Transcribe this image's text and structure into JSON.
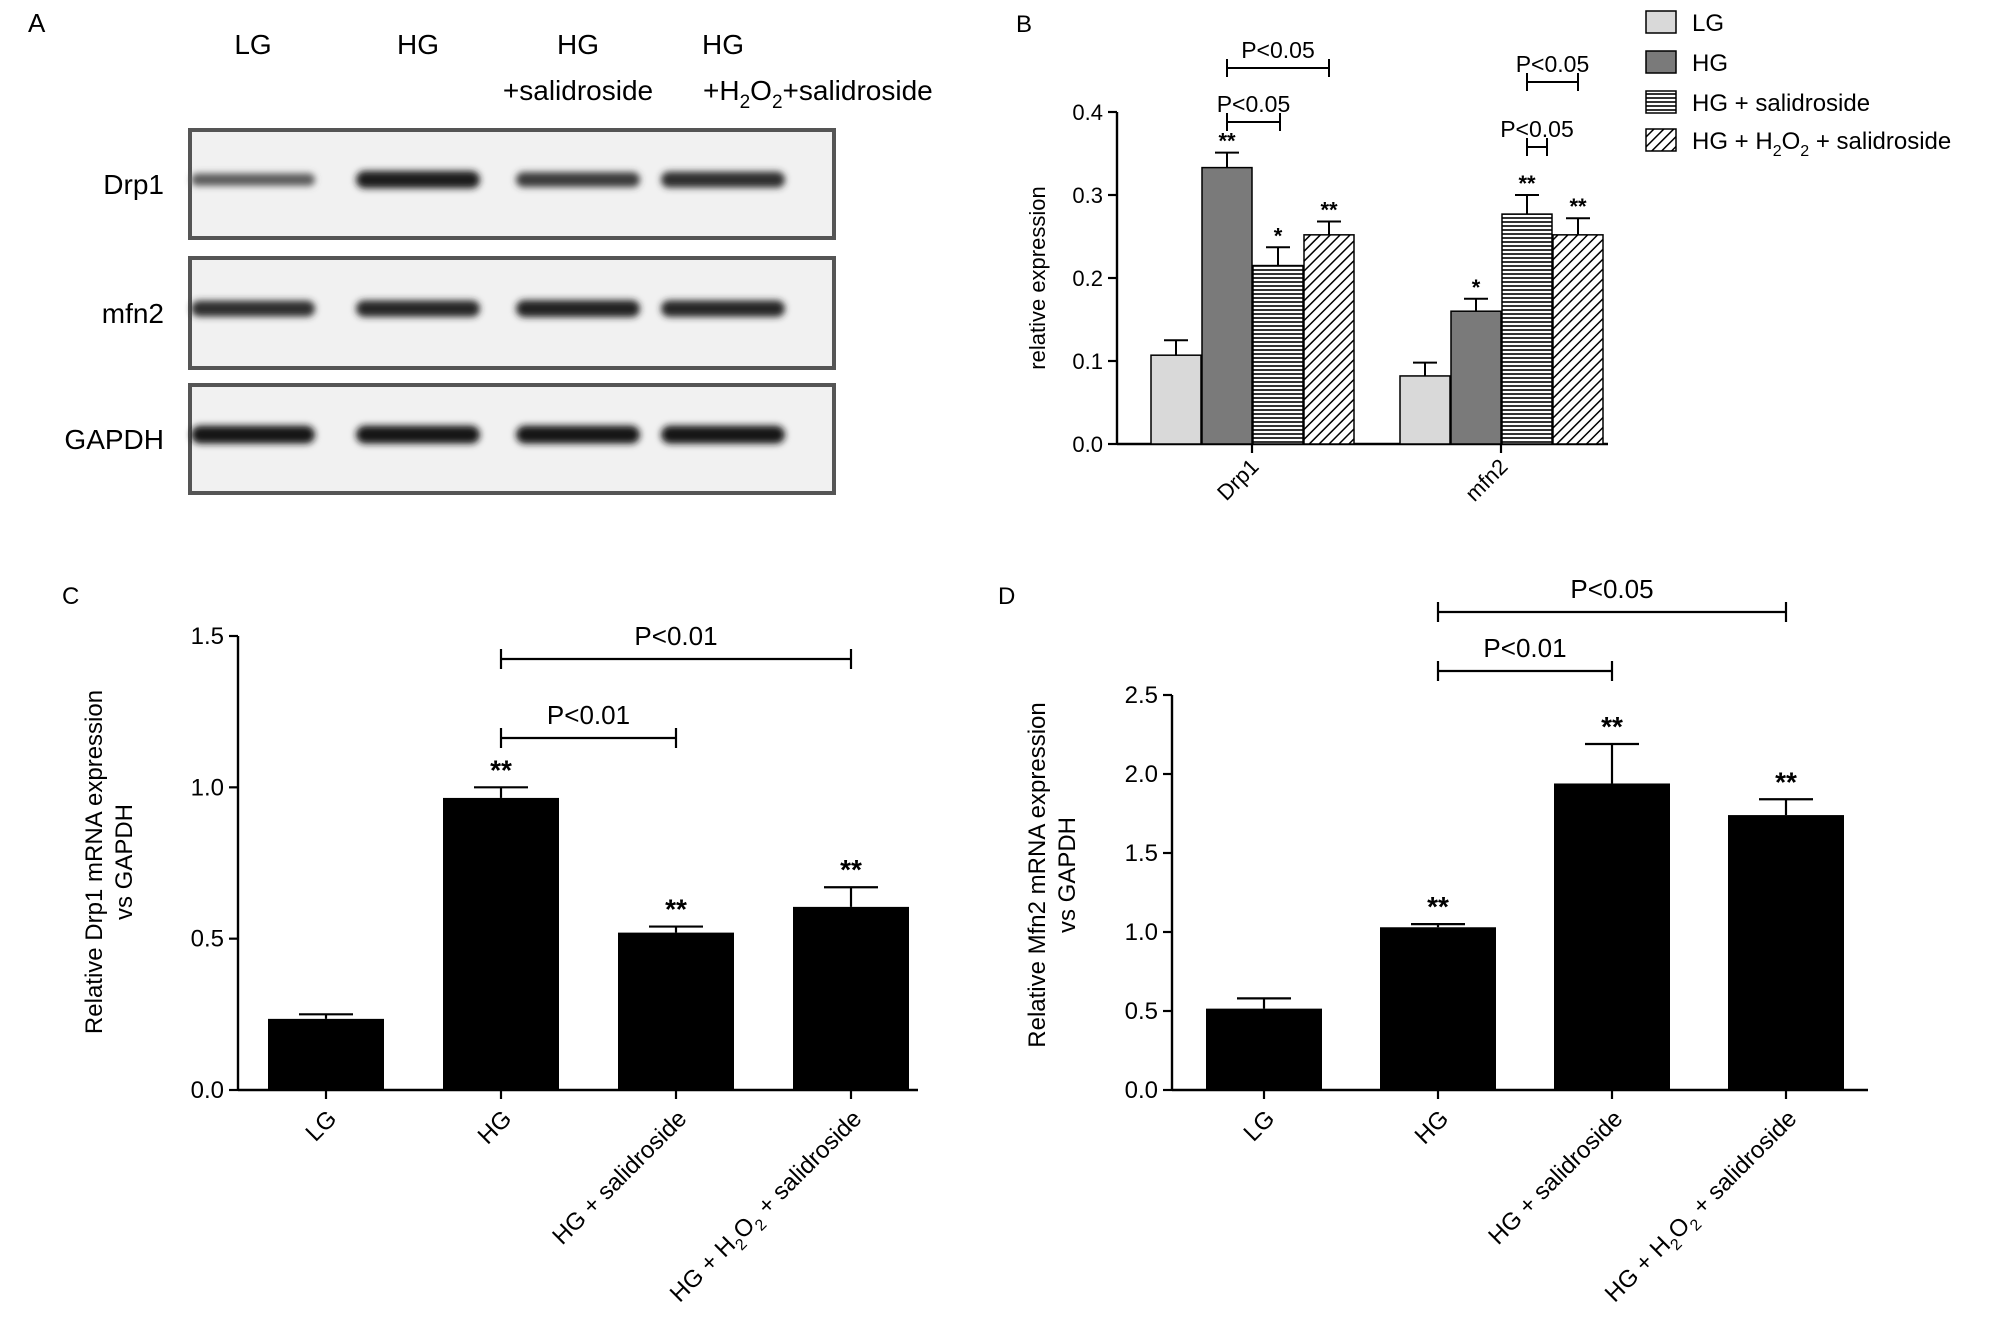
{
  "panel_a": {
    "panel_label": "A",
    "lane_labels": [
      {
        "line1": "LG",
        "line2": ""
      },
      {
        "line1": "HG",
        "line2": ""
      },
      {
        "line1": "HG",
        "line2": "+salidroside"
      },
      {
        "line1": "HG",
        "line2_parts": [
          "+H",
          "2",
          "O",
          "2",
          "+salidroside"
        ]
      }
    ],
    "rows": [
      {
        "label": "Drp1",
        "intensity": [
          0.45,
          0.95,
          0.7,
          0.8
        ]
      },
      {
        "label": "mfn2",
        "intensity": [
          0.8,
          0.85,
          0.9,
          0.85
        ]
      },
      {
        "label": "GAPDH",
        "intensity": [
          1.0,
          1.0,
          1.0,
          1.0
        ]
      }
    ]
  },
  "chart_data": [
    {
      "panel_label": "B",
      "type": "bar",
      "ylabel": "relative expression",
      "ylim": [
        0,
        0.4
      ],
      "yticks": [
        "0.0",
        "0.1",
        "0.2",
        "0.3",
        "0.4"
      ],
      "categories": [
        "Drp1",
        "mfn2"
      ],
      "legend": [
        {
          "parts": [
            "LG"
          ]
        },
        {
          "parts": [
            "HG"
          ]
        },
        {
          "parts": [
            "HG + salidroside"
          ]
        },
        {
          "parts": [
            "HG + H",
            "2",
            "O",
            "2",
            " + salidroside"
          ]
        }
      ],
      "series": [
        {
          "name": "LG",
          "values": [
            0.107,
            0.082
          ],
          "errors": [
            0.018,
            0.016
          ],
          "stars": [
            "",
            ""
          ],
          "fill": "#d9d9d9"
        },
        {
          "name": "HG",
          "values": [
            0.333,
            0.16
          ],
          "errors": [
            0.018,
            0.015
          ],
          "stars": [
            "**",
            "*"
          ],
          "fill": "#7a7a7a"
        },
        {
          "name": "HG + salidroside",
          "values": [
            0.215,
            0.277
          ],
          "errors": [
            0.022,
            0.023
          ],
          "stars": [
            "*",
            "**"
          ],
          "fill": "hlines"
        },
        {
          "name": "HG + H2O2 + salidroside",
          "values": [
            0.252,
            0.252
          ],
          "errors": [
            0.016,
            0.02
          ],
          "stars": [
            "**",
            "**"
          ],
          "fill": "dlines"
        }
      ],
      "brackets": [
        {
          "category": 0,
          "from": 1,
          "to": 3,
          "label": "P<0.05",
          "level": 0
        },
        {
          "category": 0,
          "from": 1,
          "to": 2,
          "label": "P<0.05",
          "level": 1
        },
        {
          "category": 1,
          "from": 2,
          "to": 3,
          "label": "P<0.05",
          "level": 0
        },
        {
          "category": 1,
          "from": 2,
          "to": 2.5,
          "label": "P<0.05",
          "level": 1
        }
      ]
    },
    {
      "panel_label": "C",
      "type": "bar",
      "ylabel_lines": [
        "Relative Drp1 mRNA expression",
        "vs GAPDH"
      ],
      "ylim": [
        0,
        1.5
      ],
      "yticks": [
        "0.0",
        "0.5",
        "1.0",
        "1.5"
      ],
      "categories": [
        {
          "parts": [
            "LG"
          ]
        },
        {
          "parts": [
            "HG"
          ]
        },
        {
          "parts": [
            "HG + salidroside"
          ]
        },
        {
          "parts": [
            "HG + H",
            "2",
            "O",
            "2",
            " + salidroside"
          ]
        }
      ],
      "values": [
        0.235,
        0.965,
        0.52,
        0.605
      ],
      "errors": [
        0.015,
        0.035,
        0.02,
        0.065
      ],
      "stars": [
        "",
        "**",
        "**",
        "**"
      ],
      "brackets": [
        {
          "from": 1,
          "to": 3,
          "label": "P<0.01",
          "level": 0
        },
        {
          "from": 1,
          "to": 2,
          "label": "P<0.01",
          "level": 1
        }
      ]
    },
    {
      "panel_label": "D",
      "type": "bar",
      "ylabel_lines": [
        "Relative Mfn2 mRNA expression",
        "vs GAPDH"
      ],
      "ylim": [
        0,
        2.5
      ],
      "yticks": [
        "0.0",
        "0.5",
        "1.0",
        "1.5",
        "2.0",
        "2.5"
      ],
      "categories": [
        {
          "parts": [
            "LG"
          ]
        },
        {
          "parts": [
            "HG"
          ]
        },
        {
          "parts": [
            "HG + salidroside"
          ]
        },
        {
          "parts": [
            "HG + H",
            "2",
            "O",
            "2",
            " + salidroside"
          ]
        }
      ],
      "values": [
        0.515,
        1.03,
        1.94,
        1.74
      ],
      "errors": [
        0.065,
        0.02,
        0.25,
        0.1
      ],
      "stars": [
        "",
        "**",
        "**",
        "**"
      ],
      "brackets": [
        {
          "from": 1,
          "to": 3,
          "label": "P<0.05",
          "level": 0
        },
        {
          "from": 1,
          "to": 2,
          "label": "P<0.01",
          "level": 1
        }
      ]
    }
  ]
}
